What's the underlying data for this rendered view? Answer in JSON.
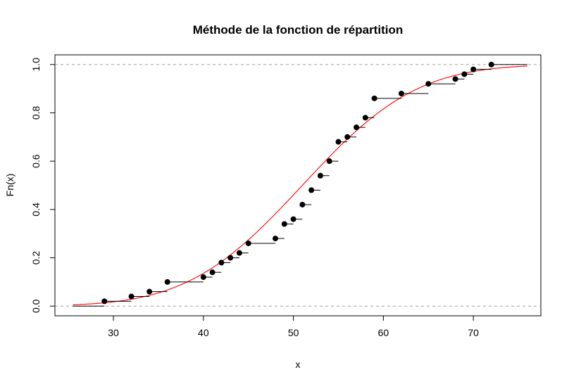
{
  "chart_data": {
    "type": "scatter",
    "title": "Méthode de la fonction de répartition",
    "xlabel": "x",
    "ylabel": "Fn(x)",
    "xlim": [
      23.5,
      77.5
    ],
    "ylim": [
      -0.04,
      1.04
    ],
    "xticks": [
      30,
      40,
      50,
      60,
      70
    ],
    "yticks": [
      0.0,
      0.2,
      0.4,
      0.6,
      0.8,
      1.0
    ],
    "xtick_labels": [
      "30",
      "40",
      "50",
      "60",
      "70"
    ],
    "ytick_labels": [
      "0.0",
      "0.2",
      "0.4",
      "0.6",
      "0.8",
      "1.0"
    ],
    "reference_lines": [
      0.0,
      1.0
    ],
    "ecdf_start_x": 25.5,
    "ecdf_end_x": 76,
    "series": [
      {
        "kind": "ecdf-step",
        "color": "#000000",
        "x": [
          29,
          32,
          34,
          36,
          40,
          41,
          42,
          43,
          44,
          45,
          48,
          49,
          50,
          51,
          52,
          53,
          54,
          55,
          56,
          57,
          58,
          59,
          62,
          65,
          68,
          69,
          70,
          72
        ],
        "y": [
          0.02,
          0.04,
          0.06,
          0.1,
          0.12,
          0.14,
          0.18,
          0.2,
          0.22,
          0.26,
          0.28,
          0.34,
          0.36,
          0.42,
          0.48,
          0.54,
          0.6,
          0.68,
          0.7,
          0.74,
          0.78,
          0.86,
          0.88,
          0.92,
          0.94,
          0.96,
          0.98,
          1.0
        ]
      },
      {
        "kind": "normal-cdf",
        "color": "#ff0000",
        "mean": 51,
        "sd": 10,
        "x_range": [
          25.5,
          76
        ]
      }
    ]
  }
}
